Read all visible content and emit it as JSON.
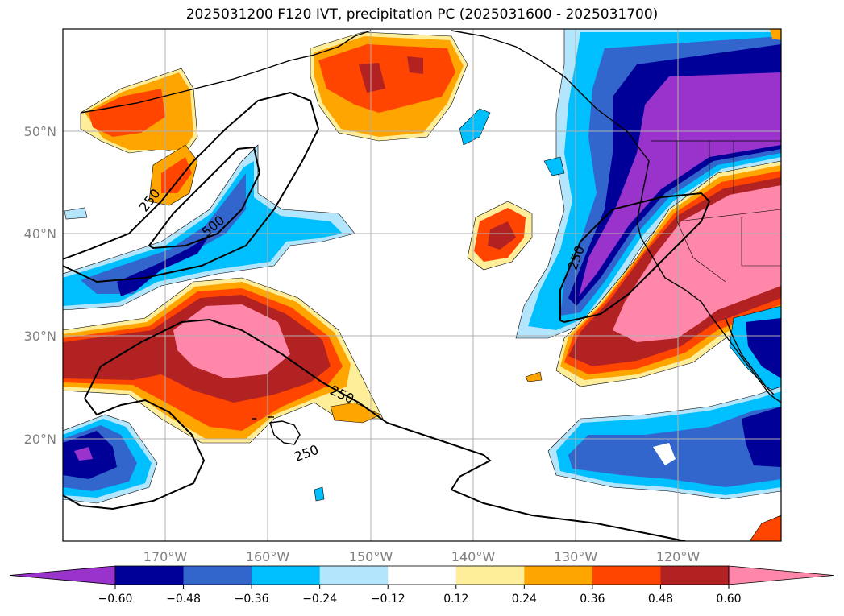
{
  "title": "2025031200 F120 IVT, precipitation PC (2025031600 - 2025031700)",
  "lat_labels": [
    "50°N",
    "40°N",
    "30°N",
    "20°N"
  ],
  "lon_labels": [
    "170°W",
    "160°W",
    "150°W",
    "140°W",
    "130°W",
    "120°W"
  ],
  "ivt_contour_labels": [
    "250",
    "500",
    "250",
    "250",
    "250"
  ],
  "colorbar": {
    "tick_labels": [
      "−0.60",
      "−0.48",
      "−0.36",
      "−0.24",
      "−0.12",
      "0.12",
      "0.24",
      "0.36",
      "0.48",
      "0.60"
    ],
    "colors": [
      "#9933cc",
      "#000099",
      "#3366cc",
      "#00bfff",
      "#b3e5fc",
      "#ffffff",
      "#ffee99",
      "#ffa500",
      "#ff4500",
      "#b22222",
      "#ff88aa"
    ]
  },
  "colors": {
    "coastline": "#000000",
    "grid": "#b0b0b0",
    "ivt_contour": "#000000"
  }
}
